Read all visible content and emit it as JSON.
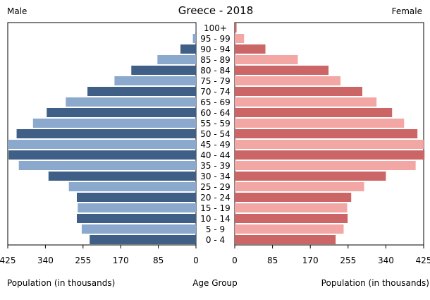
{
  "chart_data": {
    "type": "bar",
    "title": "Greece - 2018",
    "left_label": "Male",
    "right_label": "Female",
    "xlabel_left": "Population (in thousands)",
    "xlabel_center": "Age Group",
    "xlabel_right": "Population (in thousands)",
    "xlim": [
      0,
      425
    ],
    "x_ticks": [
      0,
      85,
      170,
      255,
      340,
      425
    ],
    "x_tick_labels_left": [
      "425",
      "340",
      "255",
      "170",
      "85",
      "0"
    ],
    "x_tick_labels_right": [
      "0",
      "85",
      "170",
      "255",
      "340",
      "425"
    ],
    "categories": [
      "100+",
      "95 - 99",
      "90 - 94",
      "85 - 89",
      "80 - 84",
      "75 - 79",
      "70 - 74",
      "65 - 69",
      "60 - 64",
      "55 - 59",
      "50 - 54",
      "45 - 49",
      "40 - 44",
      "35 - 39",
      "30 - 34",
      "25 - 29",
      "20 - 24",
      "15 - 19",
      "10 - 14",
      "5 - 9",
      "0 - 4"
    ],
    "series": [
      {
        "name": "Male",
        "values": [
          1,
          7,
          35,
          87,
          146,
          184,
          245,
          294,
          337,
          368,
          405,
          425,
          423,
          400,
          333,
          287,
          269,
          267,
          269,
          258,
          240
        ]
      },
      {
        "name": "Female",
        "values": [
          4,
          21,
          69,
          142,
          211,
          238,
          287,
          319,
          354,
          381,
          411,
          425,
          427,
          407,
          340,
          291,
          262,
          253,
          254,
          245,
          227
        ]
      }
    ],
    "colors": {
      "male_dark": "#3f5f86",
      "male_light": "#8aa9cc",
      "female_dark": "#cc6666",
      "female_light": "#f2a7a5"
    }
  }
}
